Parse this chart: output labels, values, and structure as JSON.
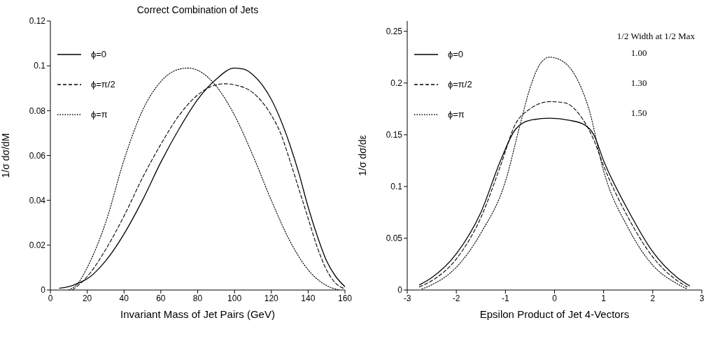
{
  "chart_data": [
    {
      "type": "line",
      "title": "Correct Combination of Jets",
      "xlabel": "Invariant Mass of Jet Pairs (GeV)",
      "ylabel": "1/σ dσ/dM",
      "xlim": [
        0,
        160
      ],
      "xticks": [
        0,
        20,
        40,
        60,
        80,
        100,
        120,
        140,
        160
      ],
      "ylim": [
        0,
        0.12
      ],
      "yticks": [
        0,
        0.02,
        0.04,
        0.06,
        0.08,
        0.1,
        0.12
      ],
      "legend": "top left",
      "marker": "none",
      "series": [
        {
          "name": "ϕ=0",
          "color": "#000000",
          "line_style": "solid",
          "x": [
            5,
            10,
            15,
            20,
            30,
            40,
            50,
            60,
            70,
            80,
            90,
            100,
            105,
            110,
            120,
            130,
            135,
            140,
            145,
            150,
            155,
            160
          ],
          "values": [
            0.0008,
            0.0015,
            0.003,
            0.005,
            0.013,
            0.025,
            0.04,
            0.057,
            0.072,
            0.085,
            0.094,
            0.099,
            0.0985,
            0.096,
            0.085,
            0.065,
            0.052,
            0.037,
            0.024,
            0.013,
            0.006,
            0.0015
          ]
        },
        {
          "name": "ϕ=π/2",
          "color": "#000000",
          "line_style": "dashed",
          "x": [
            12,
            15,
            20,
            30,
            40,
            50,
            60,
            70,
            80,
            90,
            95,
            100,
            110,
            120,
            125,
            130,
            135,
            140,
            145,
            150,
            155,
            160
          ],
          "values": [
            0,
            0.002,
            0.006,
            0.018,
            0.033,
            0.05,
            0.065,
            0.078,
            0.087,
            0.0915,
            0.092,
            0.0915,
            0.088,
            0.078,
            0.07,
            0.058,
            0.045,
            0.032,
            0.019,
            0.009,
            0.003,
            0.0005
          ]
        },
        {
          "name": "ϕ=π",
          "color": "#000000",
          "line_style": "dotted",
          "x": [
            10,
            15,
            20,
            30,
            40,
            50,
            60,
            70,
            75,
            80,
            90,
            100,
            110,
            120,
            130,
            140,
            150,
            157
          ],
          "values": [
            0,
            0.003,
            0.01,
            0.03,
            0.058,
            0.08,
            0.093,
            0.0985,
            0.099,
            0.098,
            0.091,
            0.078,
            0.06,
            0.04,
            0.022,
            0.009,
            0.002,
            0
          ]
        }
      ]
    },
    {
      "type": "line",
      "xlabel": "Epsilon Product of Jet 4-Vectors",
      "ylabel": "1/σ dσ/dε",
      "xlim": [
        -3,
        3
      ],
      "xticks": [
        -3,
        -2,
        -1,
        0,
        1,
        2,
        3
      ],
      "ylim": [
        0,
        0.26
      ],
      "yticks": [
        0,
        0.05,
        0.1,
        0.15,
        0.2,
        0.25
      ],
      "legend": "top left",
      "marker": "none",
      "annotations": [
        "1/2 Width at 1/2 Max",
        "1.00",
        "1.30",
        "1.50"
      ],
      "series": [
        {
          "name": "ϕ=0",
          "color": "#000000",
          "line_style": "solid",
          "x": [
            -2.75,
            -2.5,
            -2,
            -1.5,
            -1.1,
            -0.8,
            -0.5,
            -0.1,
            0.3,
            0.6,
            0.8,
            1,
            1.5,
            2,
            2.5,
            2.75
          ],
          "values": [
            0.005,
            0.012,
            0.035,
            0.075,
            0.125,
            0.155,
            0.164,
            0.166,
            0.164,
            0.16,
            0.15,
            0.125,
            0.077,
            0.037,
            0.012,
            0.004
          ]
        },
        {
          "name": "ϕ=π/2",
          "color": "#000000",
          "line_style": "dashed",
          "x": [
            -2.75,
            -2.5,
            -2,
            -1.5,
            -1.1,
            -0.8,
            -0.5,
            -0.1,
            0.2,
            0.5,
            0.8,
            1,
            1.5,
            2,
            2.5,
            2.7
          ],
          "values": [
            0.003,
            0.009,
            0.03,
            0.07,
            0.12,
            0.16,
            0.175,
            0.182,
            0.181,
            0.17,
            0.145,
            0.12,
            0.07,
            0.032,
            0.009,
            0.003
          ]
        },
        {
          "name": "ϕ=π",
          "color": "#000000",
          "line_style": "dotted",
          "x": [
            -2.7,
            -2.5,
            -2,
            -1.5,
            -1,
            -0.7,
            -0.5,
            -0.3,
            -0.1,
            0.2,
            0.5,
            0.7,
            1,
            1.5,
            2,
            2.5,
            2.7
          ],
          "values": [
            0.001,
            0.005,
            0.022,
            0.055,
            0.105,
            0.16,
            0.195,
            0.218,
            0.225,
            0.22,
            0.2,
            0.175,
            0.115,
            0.06,
            0.024,
            0.006,
            0.001
          ]
        }
      ]
    }
  ]
}
